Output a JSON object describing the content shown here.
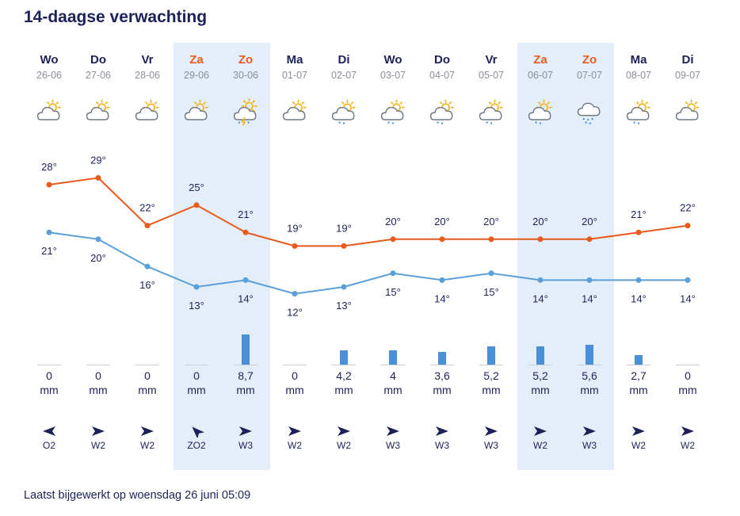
{
  "page": {
    "title": "14-daagse verwachting",
    "updated": "Laatst bijgewerkt op woensdag 26 juni 05:09"
  },
  "colors": {
    "max_line": "#e8591c",
    "min_line": "#5a9fd8",
    "rain_bar": "#4a90d9",
    "weekend_bg": "#e3eefa",
    "weekend_text": "#ea5b1d",
    "text": "#1c2257"
  },
  "rain_unit": "mm",
  "days": [
    {
      "day": "Wo",
      "date": "26-06",
      "weekend": false,
      "icon": "partly-cloudy-icon",
      "max": "28°",
      "min": "21°",
      "rain": "0",
      "wind_dir": "O",
      "wind": "O2"
    },
    {
      "day": "Do",
      "date": "27-06",
      "weekend": false,
      "icon": "partly-cloudy-icon",
      "max": "29°",
      "min": "20°",
      "rain": "0",
      "wind_dir": "W",
      "wind": "W2"
    },
    {
      "day": "Vr",
      "date": "28-06",
      "weekend": false,
      "icon": "partly-cloudy-icon",
      "max": "22°",
      "min": "16°",
      "rain": "0",
      "wind_dir": "W",
      "wind": "W2"
    },
    {
      "day": "Za",
      "date": "29-06",
      "weekend": true,
      "icon": "partly-cloudy-icon",
      "max": "25°",
      "min": "13°",
      "rain": "0",
      "wind_dir": "ZO",
      "wind": "ZO2"
    },
    {
      "day": "Zo",
      "date": "30-06",
      "weekend": true,
      "icon": "thunderstorm-icon",
      "max": "21°",
      "min": "14°",
      "rain": "8,7",
      "wind_dir": "W",
      "wind": "W3"
    },
    {
      "day": "Ma",
      "date": "01-07",
      "weekend": false,
      "icon": "partly-cloudy-icon",
      "max": "19°",
      "min": "12°",
      "rain": "0",
      "wind_dir": "W",
      "wind": "W2"
    },
    {
      "day": "Di",
      "date": "02-07",
      "weekend": false,
      "icon": "sun-cloud-rain-icon",
      "max": "19°",
      "min": "13°",
      "rain": "4,2",
      "wind_dir": "W",
      "wind": "W2"
    },
    {
      "day": "Wo",
      "date": "03-07",
      "weekend": false,
      "icon": "sun-cloud-rain-icon",
      "max": "20°",
      "min": "15°",
      "rain": "4",
      "wind_dir": "W",
      "wind": "W3"
    },
    {
      "day": "Do",
      "date": "04-07",
      "weekend": false,
      "icon": "sun-cloud-rain-icon",
      "max": "20°",
      "min": "14°",
      "rain": "3,6",
      "wind_dir": "W",
      "wind": "W3"
    },
    {
      "day": "Vr",
      "date": "05-07",
      "weekend": false,
      "icon": "sun-cloud-rain-icon",
      "max": "20°",
      "min": "15°",
      "rain": "5,2",
      "wind_dir": "W",
      "wind": "W3"
    },
    {
      "day": "Za",
      "date": "06-07",
      "weekend": true,
      "icon": "sun-cloud-rain-icon",
      "max": "20°",
      "min": "14°",
      "rain": "5,2",
      "wind_dir": "W",
      "wind": "W2"
    },
    {
      "day": "Zo",
      "date": "07-07",
      "weekend": true,
      "icon": "rain-cloud-icon",
      "max": "20°",
      "min": "14°",
      "rain": "5,6",
      "wind_dir": "W",
      "wind": "W3"
    },
    {
      "day": "Ma",
      "date": "08-07",
      "weekend": false,
      "icon": "sun-cloud-rain-icon",
      "max": "21°",
      "min": "14°",
      "rain": "2,7",
      "wind_dir": "W",
      "wind": "W2"
    },
    {
      "day": "Di",
      "date": "09-07",
      "weekend": false,
      "icon": "partly-cloudy-icon",
      "max": "22°",
      "min": "14°",
      "rain": "0",
      "wind_dir": "W",
      "wind": "W2"
    }
  ],
  "chart_data": {
    "type": "line",
    "categories": [
      "26-06",
      "27-06",
      "28-06",
      "29-06",
      "30-06",
      "01-07",
      "02-07",
      "03-07",
      "04-07",
      "05-07",
      "06-07",
      "07-07",
      "08-07",
      "09-07"
    ],
    "series": [
      {
        "values": [
          28,
          29,
          22,
          25,
          21,
          19,
          19,
          20,
          20,
          20,
          20,
          20,
          21,
          22
        ]
      },
      {
        "values": [
          21,
          20,
          16,
          13,
          14,
          12,
          13,
          15,
          14,
          15,
          14,
          14,
          14,
          14
        ]
      }
    ],
    "rain_values": [
      0,
      0,
      0,
      0,
      8.7,
      0,
      4.2,
      4,
      3.6,
      5.2,
      5.2,
      5.6,
      2.7,
      0
    ]
  }
}
